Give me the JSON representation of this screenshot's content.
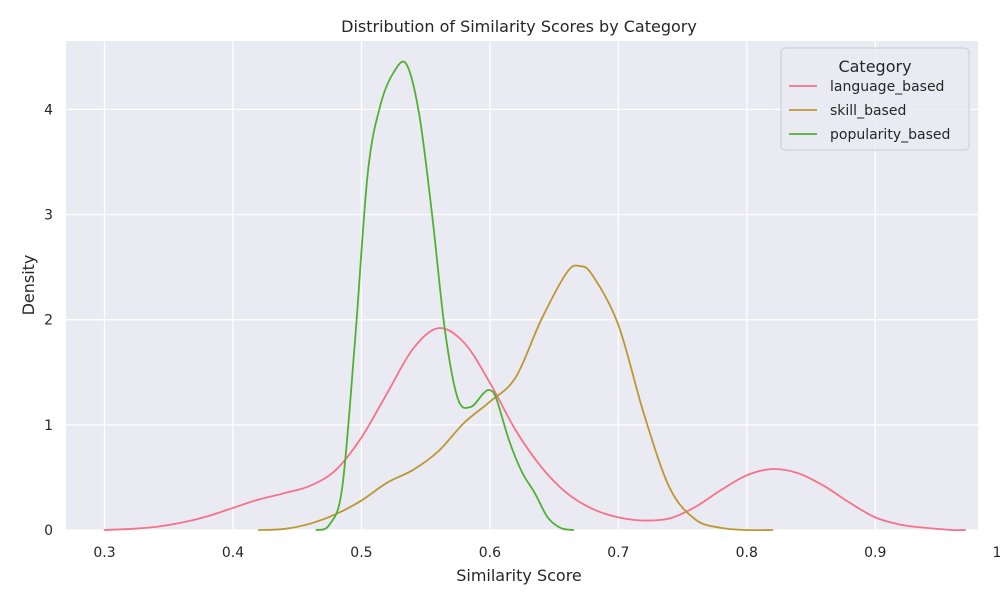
{
  "chart_data": {
    "type": "line",
    "title": "Distribution of Similarity Scores by Category",
    "xlabel": "Similarity Score",
    "ylabel": "Density",
    "xlim": [
      0.27,
      0.98
    ],
    "ylim": [
      0,
      4.65
    ],
    "xticks": [
      "0.3",
      "0.4",
      "0.5",
      "0.6",
      "0.7",
      "0.8",
      "0.9",
      "1.0"
    ],
    "yticks": [
      "0",
      "1",
      "2",
      "3",
      "4"
    ],
    "grid": true,
    "legend": {
      "title": "Category",
      "position": "top-right"
    },
    "series": [
      {
        "name": "language_based",
        "color": "#f77189",
        "x": [
          0.3,
          0.32,
          0.34,
          0.36,
          0.38,
          0.4,
          0.42,
          0.44,
          0.46,
          0.48,
          0.5,
          0.52,
          0.54,
          0.56,
          0.58,
          0.6,
          0.62,
          0.64,
          0.66,
          0.68,
          0.7,
          0.72,
          0.74,
          0.76,
          0.78,
          0.8,
          0.82,
          0.84,
          0.86,
          0.88,
          0.9,
          0.92,
          0.94,
          0.96,
          0.97
        ],
        "y": [
          0.0,
          0.01,
          0.03,
          0.07,
          0.13,
          0.21,
          0.29,
          0.35,
          0.42,
          0.57,
          0.88,
          1.3,
          1.72,
          1.92,
          1.78,
          1.4,
          0.95,
          0.6,
          0.35,
          0.2,
          0.12,
          0.09,
          0.11,
          0.22,
          0.38,
          0.52,
          0.58,
          0.54,
          0.42,
          0.26,
          0.12,
          0.05,
          0.02,
          0.0,
          0.0
        ]
      },
      {
        "name": "skill_based",
        "color": "#bb9832",
        "x": [
          0.42,
          0.44,
          0.46,
          0.48,
          0.5,
          0.52,
          0.54,
          0.56,
          0.58,
          0.6,
          0.62,
          0.64,
          0.66,
          0.67,
          0.68,
          0.7,
          0.72,
          0.74,
          0.76,
          0.78,
          0.8,
          0.82
        ],
        "y": [
          0.0,
          0.01,
          0.06,
          0.15,
          0.28,
          0.45,
          0.57,
          0.75,
          1.02,
          1.22,
          1.45,
          2.0,
          2.45,
          2.51,
          2.42,
          1.95,
          1.1,
          0.4,
          0.1,
          0.02,
          0.0,
          0.0
        ]
      },
      {
        "name": "popularity_based",
        "color": "#50b131",
        "x": [
          0.465,
          0.475,
          0.485,
          0.495,
          0.505,
          0.515,
          0.525,
          0.535,
          0.545,
          0.555,
          0.565,
          0.575,
          0.585,
          0.595,
          0.6,
          0.605,
          0.615,
          0.625,
          0.635,
          0.645,
          0.655,
          0.665
        ],
        "y": [
          0.0,
          0.05,
          0.4,
          1.8,
          3.4,
          4.05,
          4.35,
          4.43,
          3.95,
          3.0,
          1.9,
          1.25,
          1.17,
          1.3,
          1.33,
          1.25,
          0.85,
          0.55,
          0.35,
          0.12,
          0.02,
          0.0
        ]
      }
    ]
  }
}
